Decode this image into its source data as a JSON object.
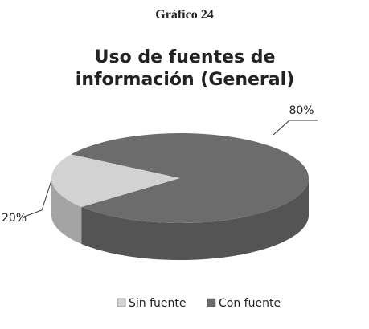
{
  "header": {
    "title": "Gráfico 24"
  },
  "chart_data": {
    "type": "pie",
    "title": "Uso de fuentes de información (General)",
    "categories": [
      "Sin fuente",
      "Con fuente"
    ],
    "values": [
      20,
      80
    ],
    "value_labels": [
      "20%",
      "80%"
    ],
    "colors": [
      "#d2d2d2",
      "#6c6c6c"
    ],
    "legend": "bottom"
  }
}
